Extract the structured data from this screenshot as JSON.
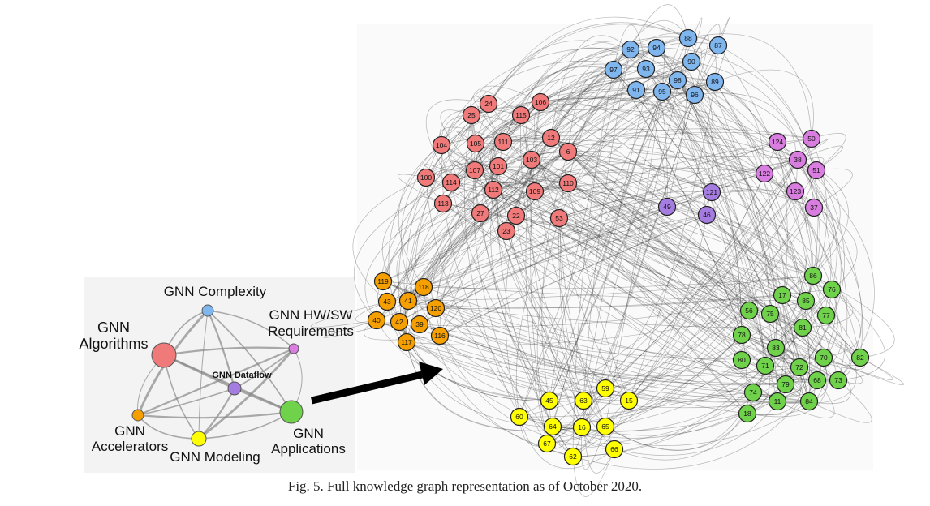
{
  "caption": "Fig. 5.  Full knowledge graph representation as of October 2020.",
  "colors": {
    "algorithms": "#f07a7a",
    "complexity": "#7fb6ee",
    "hwsw": "#d97de0",
    "dataflow": "#a57de0",
    "accelerators": "#f5a000",
    "modeling": "#ffff00",
    "applications": "#6fd24a"
  },
  "summary_graph": {
    "nodes": [
      {
        "id": "alg",
        "label": [
          "GNN",
          "Algorithms"
        ],
        "color": "#f07a7a"
      },
      {
        "id": "cplx",
        "label": [
          "GNN Complexity"
        ],
        "color": "#7fb6ee"
      },
      {
        "id": "hw",
        "label": [
          "GNN HW/SW",
          "Requirements"
        ],
        "color": "#d97de0"
      },
      {
        "id": "df",
        "label": [
          "GNN Dataflow"
        ],
        "color": "#a57de0"
      },
      {
        "id": "acc",
        "label": [
          "GNN",
          "Accelerators"
        ],
        "color": "#f5a000"
      },
      {
        "id": "mod",
        "label": [
          "GNN Modeling"
        ],
        "color": "#ffff00"
      },
      {
        "id": "app",
        "label": [
          "GNN",
          "Applications"
        ],
        "color": "#6fd24a"
      }
    ]
  },
  "groups": [
    {
      "name": "complexity",
      "color": "#7fb6ee",
      "nodes": [
        "88",
        "92",
        "94",
        "87",
        "90",
        "97",
        "93",
        "89",
        "98",
        "91",
        "95",
        "96"
      ]
    },
    {
      "name": "algorithms",
      "color": "#f07a7a",
      "nodes": [
        "24",
        "106",
        "25",
        "115",
        "104",
        "105",
        "111",
        "12",
        "6",
        "103",
        "107",
        "101",
        "100",
        "114",
        "112",
        "109",
        "110",
        "113",
        "27",
        "22",
        "53",
        "23"
      ]
    },
    {
      "name": "hwsw",
      "color": "#d97de0",
      "nodes": [
        "124",
        "50",
        "38",
        "122",
        "51",
        "123",
        "37"
      ]
    },
    {
      "name": "dataflow",
      "color": "#a57de0",
      "nodes": [
        "121",
        "49",
        "46"
      ]
    },
    {
      "name": "accelerators",
      "color": "#f5a000",
      "nodes": [
        "119",
        "118",
        "43",
        "41",
        "120",
        "40",
        "42",
        "39",
        "116",
        "117"
      ]
    },
    {
      "name": "modeling",
      "color": "#ffff00",
      "nodes": [
        "59",
        "45",
        "63",
        "15",
        "60",
        "64",
        "16",
        "65",
        "67",
        "62",
        "66"
      ]
    },
    {
      "name": "applications",
      "color": "#6fd24a",
      "nodes": [
        "86",
        "17",
        "76",
        "85",
        "56",
        "75",
        "77",
        "78",
        "81",
        "83",
        "80",
        "71",
        "72",
        "70",
        "82",
        "74",
        "79",
        "68",
        "73",
        "11",
        "84",
        "18"
      ]
    }
  ]
}
